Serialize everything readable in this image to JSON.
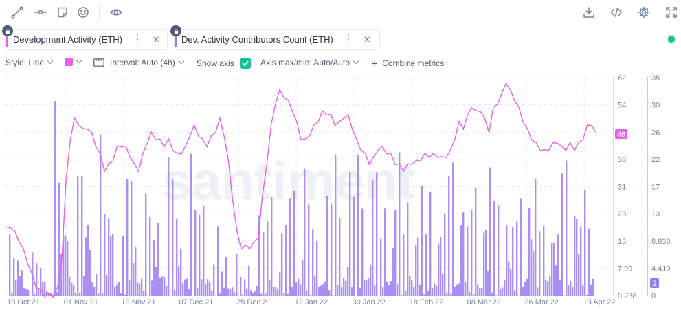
{
  "toolbar": {
    "left_icons": [
      "line-draw-icon",
      "horizontal-line-icon",
      "note-icon",
      "emoji-icon",
      "eye-icon"
    ],
    "right_icons": [
      "download-icon",
      "embed-code-icon",
      "settings-icon",
      "fullscreen-icon"
    ]
  },
  "metrics": [
    {
      "label": "Development Activity (ETH)",
      "color": "#e861e8",
      "menu": "⋮",
      "close": "✕"
    },
    {
      "label": "Dev. Activity Contributors Count (ETH)",
      "color": "#9b7cf0",
      "menu": "⋮",
      "close": "✕"
    }
  ],
  "settings": {
    "style": "Style: Line",
    "interval": "Interval: Auto (4h)",
    "show_axis": "Show axis",
    "axis_maxmin": "Axis max/min: Auto/Auto",
    "combine": "Combine metrics",
    "combine_icon": "+"
  },
  "chart_data": {
    "type": "line",
    "watermark": "santiment",
    "x_ticks": [
      "13 Oct 21",
      "01 Nov 21",
      "19 Nov 21",
      "07 Dec 21",
      "25 Dec 21",
      "12 Jan 22",
      "30 Jan 22",
      "18 Feb 22",
      "08 Mar 22",
      "26 Mar 22",
      "13 Apr 22"
    ],
    "y_left": {
      "ticks": [
        "62",
        "54",
        "46",
        "38",
        "31",
        "23",
        "15",
        "7.99",
        "0.238"
      ],
      "min": 0.238,
      "max": 62,
      "current": "46",
      "color": "#e861e8"
    },
    "y_right": {
      "ticks": [
        "35",
        "30",
        "26",
        "22",
        "17",
        "13",
        "8.838",
        "4.419",
        "0"
      ],
      "min": 0,
      "max": 35,
      "current": "2",
      "color": "#9b7cf0"
    },
    "series": [
      {
        "name": "Development Activity (ETH)",
        "type": "line",
        "color": "#e861e8",
        "values": [
          19,
          20,
          18,
          16,
          13,
          10,
          6,
          3,
          1.5,
          0.5,
          0.3,
          0.4,
          2,
          10,
          32,
          45,
          50,
          49,
          47,
          48,
          46,
          43,
          40,
          36,
          37,
          39,
          42,
          43,
          42,
          40,
          37,
          36,
          40,
          44,
          46,
          45,
          44,
          43,
          44,
          42,
          40,
          41,
          42,
          46,
          48,
          46,
          44,
          43,
          45,
          47,
          50,
          46,
          38,
          28,
          18,
          14,
          14,
          14,
          15,
          17,
          28,
          38,
          48,
          55,
          58,
          57,
          55,
          53,
          49,
          45,
          44,
          46,
          48,
          50,
          52,
          52,
          51,
          49,
          49,
          51,
          51,
          48,
          44,
          42,
          40,
          38,
          39,
          42,
          42,
          41,
          40,
          38,
          37,
          36,
          37,
          38,
          38,
          39,
          40,
          40,
          40,
          40,
          39,
          40,
          41,
          45,
          49,
          48,
          51,
          54,
          52,
          53,
          50,
          47,
          53,
          55,
          57,
          61,
          58,
          56,
          53,
          50,
          47,
          45,
          43,
          42,
          41,
          42,
          43,
          44,
          42,
          42,
          43,
          42,
          43,
          45,
          48,
          49,
          46
        ]
      },
      {
        "name": "Dev. Activity Contributors Count (ETH)",
        "type": "bar",
        "color": "#9b7cf0",
        "weekly_peaks": [
          14,
          9,
          32,
          30,
          28,
          25,
          26,
          27,
          24,
          12,
          8,
          26,
          27,
          28,
          25,
          25,
          23,
          26,
          27,
          26,
          27,
          25,
          24,
          26,
          27,
          25
        ],
        "current": 2
      }
    ]
  }
}
